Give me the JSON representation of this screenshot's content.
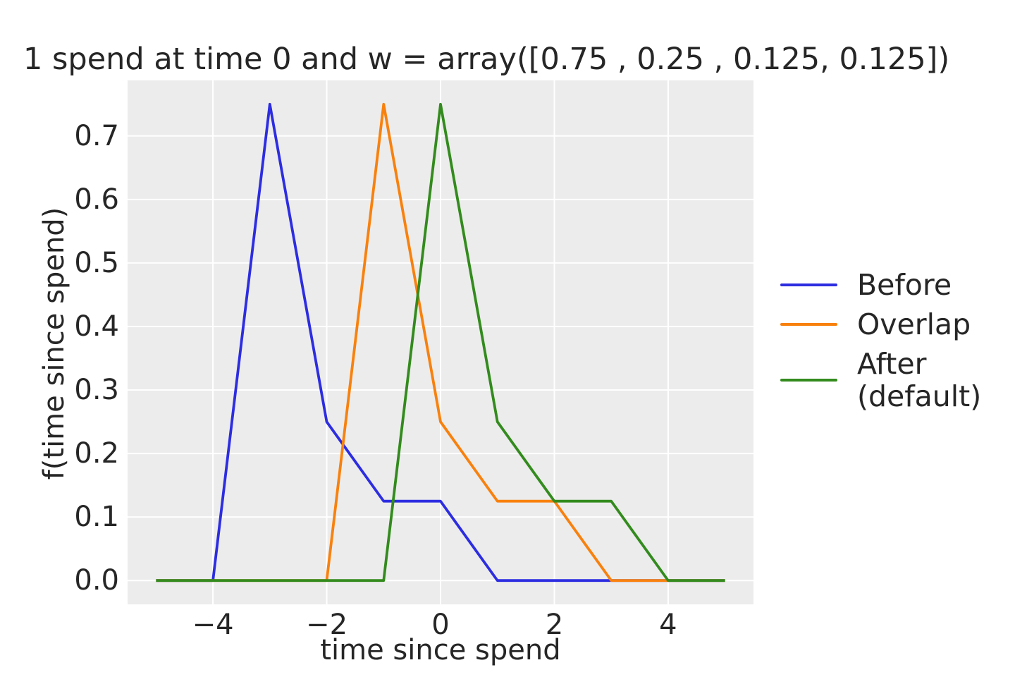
{
  "chart_data": {
    "type": "line",
    "title": "1 spend at time 0 and w = array([0.75 , 0.25 , 0.125, 0.125])",
    "xlabel": "time since spend",
    "ylabel": "f(time since spend)",
    "x": [
      -5,
      -4,
      -3,
      -2,
      -1,
      0,
      1,
      2,
      3,
      4,
      5
    ],
    "series": [
      {
        "name": "Before",
        "color": "#2d2de1",
        "values": [
          0,
          0,
          0.75,
          0.25,
          0.125,
          0.125,
          0,
          0,
          0,
          0,
          0
        ]
      },
      {
        "name": "Overlap",
        "color": "#f8810e",
        "values": [
          0,
          0,
          0,
          0,
          0.75,
          0.25,
          0.125,
          0.125,
          0,
          0,
          0
        ]
      },
      {
        "name": "After (default)",
        "color": "#338b1d",
        "values": [
          0,
          0,
          0,
          0,
          0,
          0.75,
          0.25,
          0.125,
          0.125,
          0,
          0
        ]
      }
    ],
    "x_ticks": {
      "values": [
        -4,
        -2,
        0,
        2,
        4
      ],
      "labels": [
        "−4",
        "−2",
        "0",
        "2",
        "4"
      ]
    },
    "y_ticks": {
      "values": [
        0.0,
        0.1,
        0.2,
        0.3,
        0.4,
        0.5,
        0.6,
        0.7
      ],
      "labels": [
        "0.0",
        "0.1",
        "0.2",
        "0.3",
        "0.4",
        "0.5",
        "0.6",
        "0.7"
      ]
    },
    "xlim": [
      -5.5,
      5.5
    ],
    "ylim": [
      -0.0375,
      0.7875
    ],
    "grid": true,
    "legend": {
      "position": "right-outside",
      "entries": [
        {
          "label_lines": [
            "Before"
          ],
          "color": "#2d2de1"
        },
        {
          "label_lines": [
            "Overlap"
          ],
          "color": "#f8810e"
        },
        {
          "label_lines": [
            "After",
            "(default)"
          ],
          "color": "#338b1d"
        }
      ]
    },
    "plot_bg": "#ececec",
    "grid_color": "#ffffff",
    "text_color": "#262626"
  }
}
